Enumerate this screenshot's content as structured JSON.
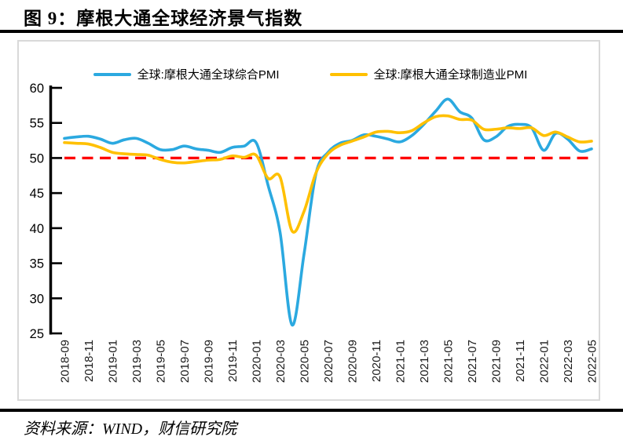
{
  "page": {
    "title": "图 9：摩根大通全球经济景气指数",
    "source": "资料来源：WIND，财信研究院"
  },
  "legend": [
    {
      "label": "全球:摩根大通全球综合PMI",
      "color": "#2BA9E0"
    },
    {
      "label": "全球:摩根大通全球制造业PMI",
      "color": "#FFC000"
    }
  ],
  "chart_data": {
    "type": "line",
    "title": "图 9：摩根大通全球经济景气指数",
    "x": [
      "2018-09",
      "2018-10",
      "2018-11",
      "2018-12",
      "2019-01",
      "2019-02",
      "2019-03",
      "2019-04",
      "2019-05",
      "2019-06",
      "2019-07",
      "2019-08",
      "2019-09",
      "2019-10",
      "2019-11",
      "2019-12",
      "2020-01",
      "2020-02",
      "2020-03",
      "2020-04",
      "2020-05",
      "2020-06",
      "2020-07",
      "2020-08",
      "2020-09",
      "2020-10",
      "2020-11",
      "2020-12",
      "2021-01",
      "2021-02",
      "2021-03",
      "2021-04",
      "2021-05",
      "2021-06",
      "2021-07",
      "2021-08",
      "2021-09",
      "2021-10",
      "2021-11",
      "2021-12",
      "2022-01",
      "2022-02",
      "2022-03",
      "2022-04",
      "2022-05"
    ],
    "x_tick_labels": [
      "2018-09",
      "2018-11",
      "2019-01",
      "2019-03",
      "2019-05",
      "2019-07",
      "2019-09",
      "2019-11",
      "2020-01",
      "2020-03",
      "2020-05",
      "2020-07",
      "2020-09",
      "2020-11",
      "2021-01",
      "2021-03",
      "2021-05",
      "2021-07",
      "2021-09",
      "2021-11",
      "2022-01",
      "2022-03",
      "2022-05"
    ],
    "series": [
      {
        "name": "全球:摩根大通全球综合PMI",
        "color": "#2BA9E0",
        "values": [
          52.8,
          53.0,
          53.1,
          52.7,
          52.1,
          52.6,
          52.8,
          52.1,
          51.2,
          51.2,
          51.7,
          51.3,
          51.1,
          50.8,
          51.5,
          51.7,
          52.2,
          46.1,
          39.4,
          26.2,
          36.3,
          47.8,
          50.8,
          52.1,
          52.5,
          53.3,
          53.1,
          52.7,
          52.3,
          53.2,
          54.8,
          56.7,
          58.4,
          56.6,
          55.7,
          52.6,
          53.0,
          54.5,
          54.8,
          54.3,
          51.1,
          53.5,
          52.7,
          51.0,
          51.3
        ]
      },
      {
        "name": "全球:摩根大通全球制造业PMI",
        "color": "#FFC000",
        "values": [
          52.2,
          52.1,
          52.0,
          51.5,
          50.8,
          50.6,
          50.5,
          50.4,
          49.8,
          49.4,
          49.3,
          49.5,
          49.7,
          49.8,
          50.3,
          50.1,
          50.4,
          47.1,
          47.3,
          39.6,
          42.4,
          47.9,
          50.6,
          51.8,
          52.4,
          53.0,
          53.7,
          53.8,
          53.6,
          53.9,
          55.0,
          55.9,
          56.0,
          55.5,
          55.4,
          54.1,
          54.1,
          54.3,
          54.2,
          54.3,
          53.2,
          53.7,
          53.0,
          52.3,
          52.4
        ]
      }
    ],
    "reference_line": {
      "value": 50,
      "color": "#FF0000",
      "style": "dashed"
    },
    "ylim": [
      25,
      60
    ],
    "y_ticks": [
      60,
      55,
      50,
      45,
      40,
      35,
      30,
      25
    ],
    "grid": false,
    "legend_position": "top",
    "axis_color": "#000000"
  }
}
